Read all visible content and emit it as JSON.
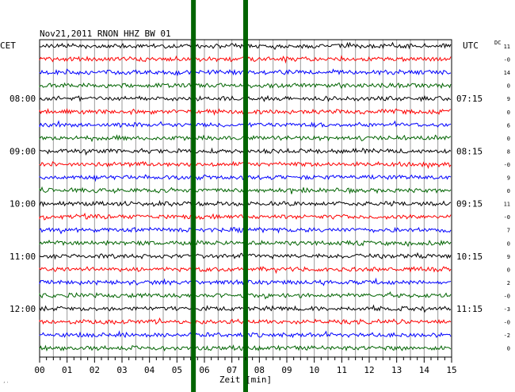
{
  "chart_data": {
    "type": "line",
    "title": "Nov21,2011   RNON HHZ BW 01",
    "left_timezone": "CET",
    "right_timezone": "UTC",
    "dc_label": "DC",
    "xlabel": "Zeit [min]",
    "xlim": [
      0,
      15
    ],
    "x_ticks": [
      "00",
      "01",
      "02",
      "03",
      "04",
      "05",
      "06",
      "07",
      "08",
      "09",
      "10",
      "11",
      "12",
      "13",
      "14",
      "15"
    ],
    "trace_colors": [
      "#000000",
      "#ff0000",
      "#0000ff",
      "#006400"
    ],
    "trace_count": 24,
    "left_time_labels": [
      {
        "row": 4,
        "text": "08:00"
      },
      {
        "row": 8,
        "text": "09:00"
      },
      {
        "row": 12,
        "text": "10:00"
      },
      {
        "row": 16,
        "text": "11:00"
      },
      {
        "row": 20,
        "text": "12:00"
      }
    ],
    "right_time_labels": [
      {
        "row": 4,
        "text": "07:15"
      },
      {
        "row": 8,
        "text": "08:15"
      },
      {
        "row": 12,
        "text": "09:15"
      },
      {
        "row": 16,
        "text": "10:15"
      },
      {
        "row": 20,
        "text": "11:15"
      }
    ],
    "dc_offsets": [
      "11",
      "-0",
      "14",
      "0",
      "9",
      "0",
      "6",
      "0",
      "8",
      "-0",
      "9",
      "0",
      "11",
      "-0",
      "7",
      "0",
      "9",
      "0",
      "2",
      "-0",
      "-3",
      "-0",
      "-2",
      "0"
    ],
    "event_markers_min": [
      5.6,
      7.5
    ],
    "event_marker_color": "#006400",
    "grid": true
  },
  "corner_mark": "´˙"
}
